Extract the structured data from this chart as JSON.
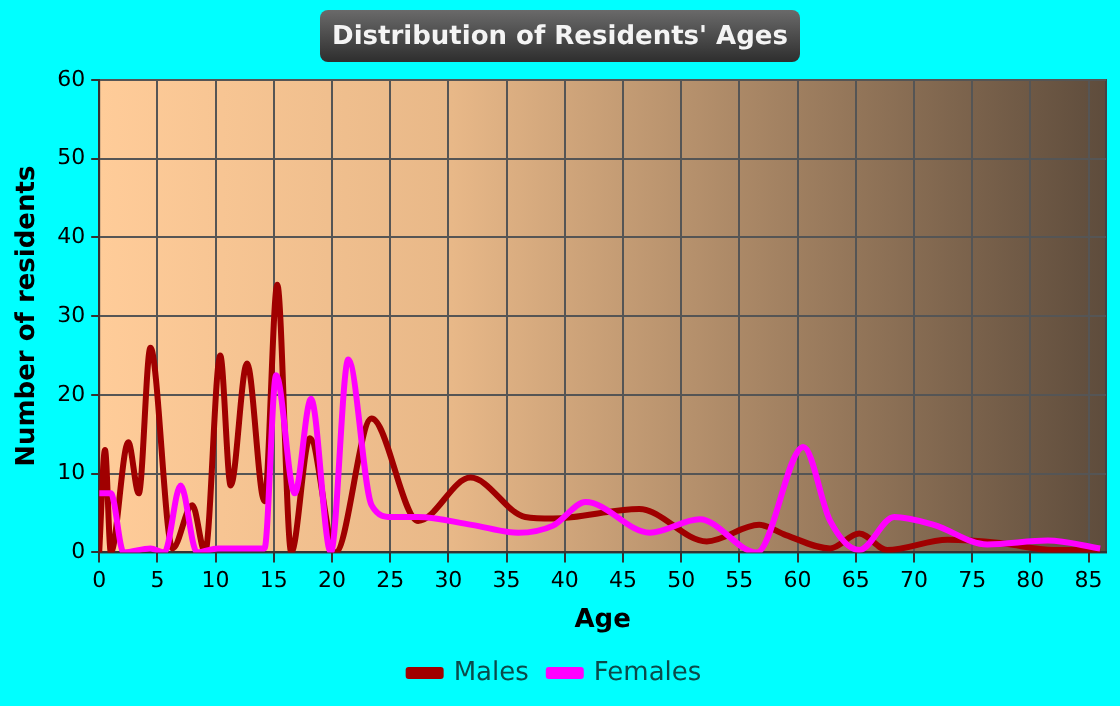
{
  "chart_data": {
    "type": "line",
    "title": "Distribution of Residents' Ages",
    "xlabel": "Age",
    "ylabel": "Number of residents",
    "xlim": [
      0,
      86.5
    ],
    "xticks": [
      0,
      5,
      10,
      15,
      20,
      25,
      30,
      35,
      40,
      45,
      50,
      55,
      60,
      65,
      70,
      75,
      80,
      85
    ],
    "ylim": [
      0,
      60
    ],
    "yticks": [
      0,
      10,
      20,
      30,
      40,
      50,
      60
    ],
    "grid": true,
    "legend": "bottom",
    "marker": "none",
    "line_style": "solid",
    "series": [
      {
        "name": "Males",
        "color": "#a00000",
        "x": [
          0,
          0.5,
          1,
          2.5,
          3.4,
          4.4,
          6.3,
          8,
          9.1,
          10.4,
          11.3,
          12.7,
          14.2,
          15.3,
          16.5,
          18.1,
          20.3,
          23.4,
          27.4,
          31.9,
          36.6,
          39,
          46.4,
          52.2,
          56.7,
          59,
          62.8,
          65.3,
          67.7,
          72.9,
          77.4,
          82,
          86
        ],
        "values": [
          0,
          13,
          0,
          14,
          7.5,
          26,
          0.5,
          6,
          0,
          25,
          8.5,
          24,
          6.5,
          34,
          0,
          14.5,
          0,
          17,
          4,
          9.5,
          4.5,
          4.3,
          5.5,
          1.4,
          3.5,
          2.2,
          0.5,
          2.4,
          0.3,
          1.6,
          1.2,
          0.3,
          0.3
        ]
      },
      {
        "name": "Females",
        "color": "#ff00ff",
        "x": [
          0,
          1,
          2.1,
          4.4,
          5.6,
          7,
          8.4,
          10.2,
          14.2,
          15.2,
          16.8,
          18.2,
          19.9,
          21.4,
          23.4,
          25.1,
          27.4,
          32,
          36,
          39,
          41.8,
          47.3,
          51.6,
          56.5,
          60.5,
          62.8,
          65.3,
          68.3,
          71.7,
          76.3,
          81.5,
          86
        ],
        "values": [
          7.5,
          7.5,
          0,
          0.5,
          0,
          8.5,
          0,
          0.5,
          0.5,
          22.5,
          7.5,
          19.5,
          0,
          24.5,
          6,
          4.5,
          4.5,
          3.5,
          2.5,
          3.4,
          6.4,
          2.5,
          4.2,
          0,
          13.4,
          4,
          0.3,
          4.5,
          3.5,
          1,
          1.5,
          0.5
        ]
      }
    ]
  }
}
